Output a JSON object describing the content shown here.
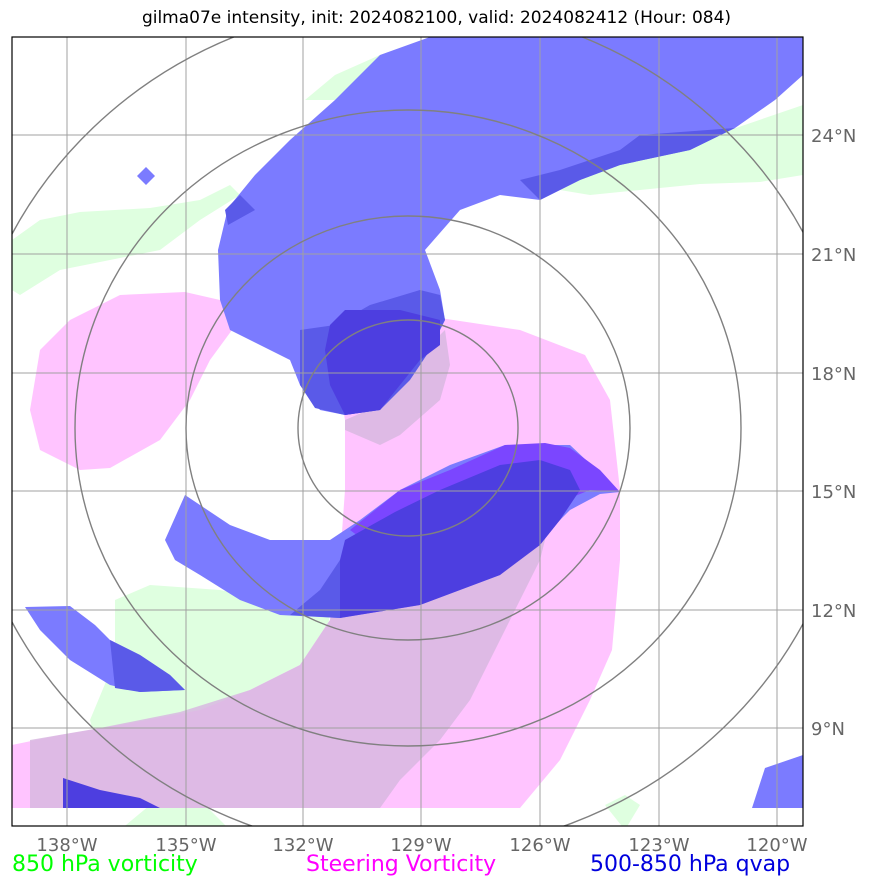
{
  "title": "gilma07e intensity, init: 2024082100, valid: 2024082412 (Hour: 084)",
  "map": {
    "lon_range": [
      -139.4,
      -119.4
    ],
    "lat_range": [
      6.5,
      26.4
    ],
    "lon_ticks": [
      "138°W",
      "135°W",
      "132°W",
      "129°W",
      "126°W",
      "123°W",
      "120°W"
    ],
    "lat_ticks": [
      "9°N",
      "12°N",
      "15°N",
      "18°N",
      "21°N",
      "24°N"
    ],
    "range_rings_center": {
      "lon": -129.0,
      "lat": 16.6
    },
    "colors": {
      "vorticity_850": "#dfffe0",
      "steering_vorticity": "#ffbfff",
      "qvap": "#0000ff",
      "grid": "#a0a0a0",
      "rings": "#808080"
    }
  },
  "legend": {
    "vorticity_850": "850 hPa vorticity",
    "steering_vorticity": "Steering Vorticity",
    "qvap": "500-850 hPa qvap"
  }
}
